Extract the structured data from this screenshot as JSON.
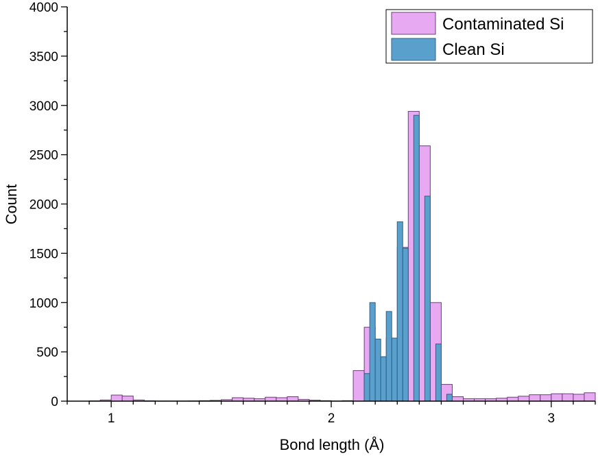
{
  "chart_data": {
    "type": "bar",
    "xlabel": "Bond length (Å)",
    "ylabel": "Count",
    "xlim": [
      0.8,
      3.2
    ],
    "ylim": [
      0,
      4000
    ],
    "x_ticks": [
      1,
      2,
      3
    ],
    "y_ticks": [
      0,
      500,
      1000,
      1500,
      2000,
      2500,
      3000,
      3500,
      4000
    ],
    "grid": false,
    "legend_position": "top-right",
    "series": [
      {
        "name": "Contaminated Si",
        "color": "#e8a9f3",
        "edge": "#6b3f75",
        "bin_width": 0.05,
        "x": [
          0.925,
          0.975,
          1.025,
          1.075,
          1.125,
          1.175,
          1.225,
          1.275,
          1.325,
          1.375,
          1.425,
          1.475,
          1.525,
          1.575,
          1.625,
          1.675,
          1.725,
          1.775,
          1.825,
          1.875,
          1.925,
          1.975,
          2.025,
          2.075,
          2.125,
          2.175,
          2.225,
          2.275,
          2.325,
          2.375,
          2.425,
          2.475,
          2.525,
          2.575,
          2.625,
          2.675,
          2.725,
          2.775,
          2.825,
          2.875,
          2.925,
          2.975,
          3.025,
          3.075,
          3.125,
          3.175
        ],
        "values": [
          3,
          12,
          62,
          52,
          12,
          4,
          2,
          2,
          2,
          3,
          5,
          8,
          15,
          35,
          30,
          25,
          40,
          35,
          45,
          18,
          10,
          5,
          2,
          5,
          310,
          750,
          450,
          640,
          1560,
          2940,
          2590,
          1000,
          170,
          45,
          25,
          25,
          25,
          30,
          40,
          50,
          65,
          65,
          75,
          75,
          70,
          85
        ]
      },
      {
        "name": "Clean Si",
        "color": "#5aa0cc",
        "edge": "#2f5f85",
        "bin_width": 0.025,
        "x": [
          2.1375,
          2.1625,
          2.1875,
          2.2125,
          2.2375,
          2.2625,
          2.2875,
          2.3125,
          2.3375,
          2.3625,
          2.3875,
          2.4125,
          2.4375,
          2.4625,
          2.4875,
          2.5125,
          2.5375
        ],
        "values": [
          0,
          280,
          1000,
          630,
          450,
          910,
          640,
          1820,
          1550,
          0,
          2900,
          0,
          2080,
          0,
          580,
          0,
          70
        ]
      }
    ]
  }
}
